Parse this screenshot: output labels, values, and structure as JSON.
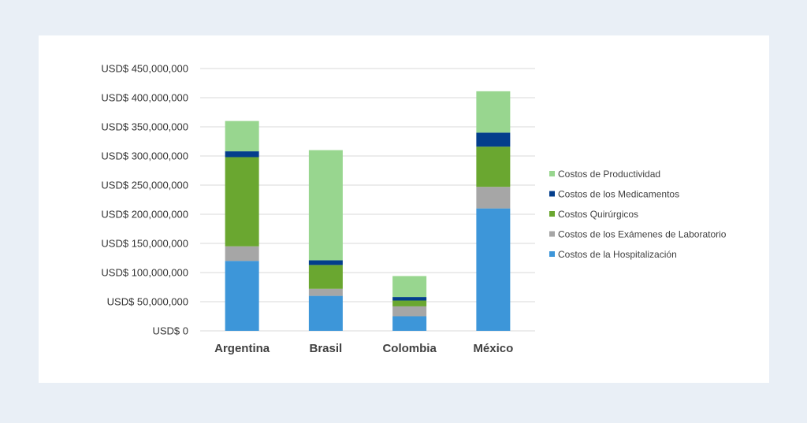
{
  "chart_data": {
    "type": "bar",
    "stacked": true,
    "title": "",
    "xlabel": "",
    "ylabel": "",
    "categories": [
      "Argentina",
      "Brasil",
      "Colombia",
      "México"
    ],
    "ylim": [
      0,
      450000000
    ],
    "yticks": [
      0,
      50000000,
      100000000,
      150000000,
      200000000,
      250000000,
      300000000,
      350000000,
      400000000,
      450000000
    ],
    "ytick_labels": [
      "USD$ 0",
      "USD$ 50,000,000",
      "USD$ 100,000,000",
      "USD$ 150,000,000",
      "USD$ 200,000,000",
      "USD$ 250,000,000",
      "USD$ 300,000,000",
      "USD$ 350,000,000",
      "USD$ 400,000,000",
      "USD$ 450,000,000"
    ],
    "grid": true,
    "legend_position": "right",
    "series": [
      {
        "name": "Costos de la Hospitalización",
        "color": "#3d96d9",
        "values": [
          120000000,
          60000000,
          25000000,
          210000000
        ]
      },
      {
        "name": "Costos de los Exámenes de Laboratorio",
        "color": "#a6a6a6",
        "values": [
          25000000,
          12000000,
          17000000,
          37000000
        ]
      },
      {
        "name": "Costos Quirúrgicos",
        "color": "#6aa730",
        "values": [
          153000000,
          41000000,
          10000000,
          69000000
        ]
      },
      {
        "name": "Costos de los Medicamentos",
        "color": "#033e8c",
        "values": [
          10000000,
          8000000,
          6000000,
          24000000
        ]
      },
      {
        "name": "Costos de Productividad",
        "color": "#98d68f",
        "values": [
          52000000,
          189000000,
          36000000,
          71000000
        ]
      }
    ],
    "legend_order": [
      4,
      3,
      2,
      1,
      0
    ]
  }
}
